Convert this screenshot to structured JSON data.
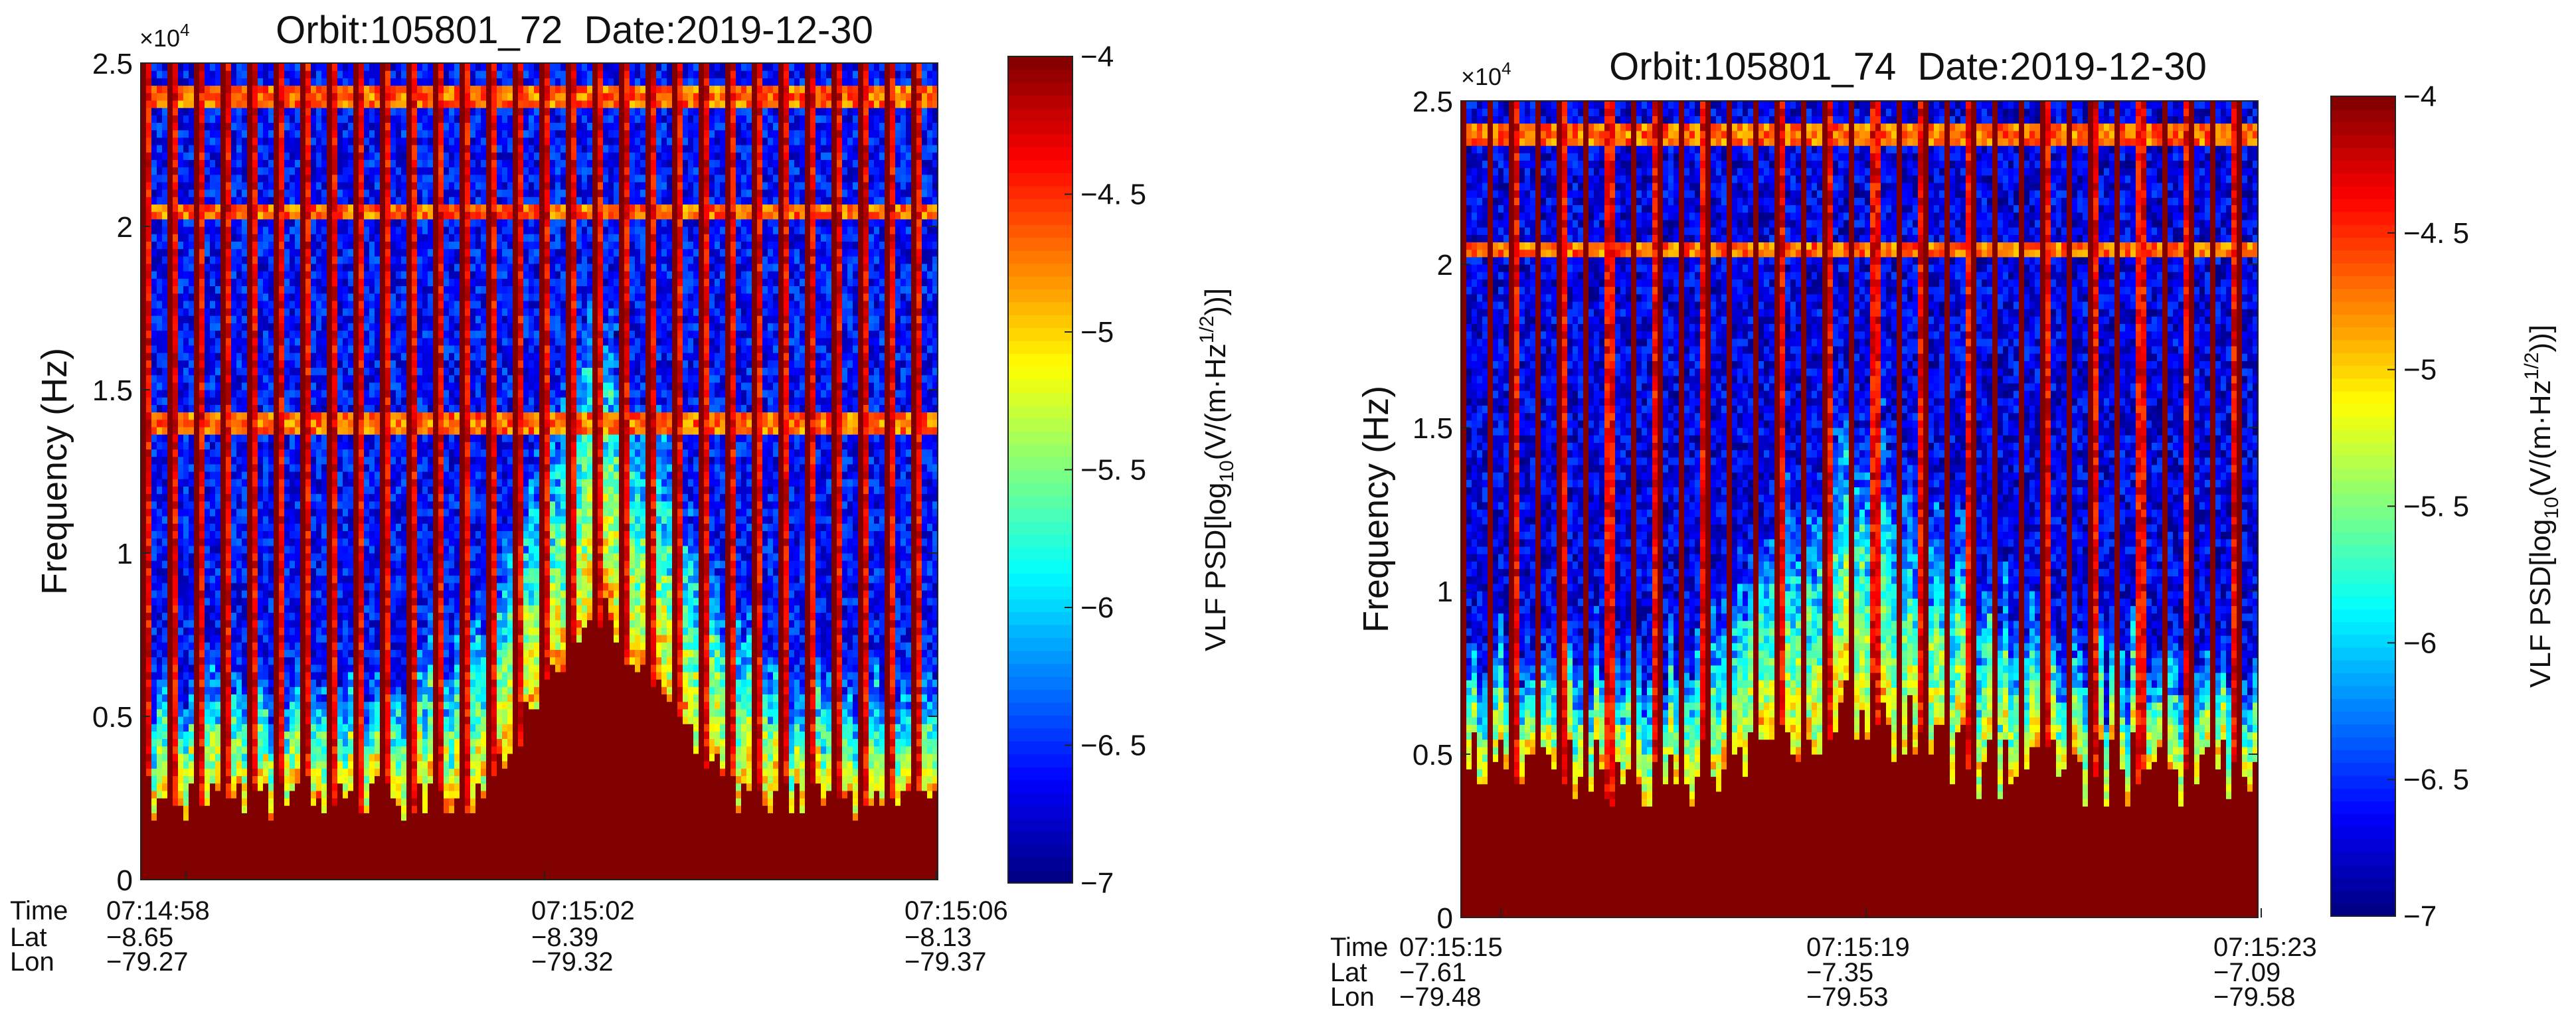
{
  "chart_data": [
    {
      "type": "heatmap",
      "title": "Orbit:105801_72  Date:2019-12-30",
      "orbit": "Orbit:105801_72",
      "date": "Date:2019-12-30",
      "ylabel": "Frequency (Hz)",
      "y_exponent_base": "×10",
      "y_exponent_power": "4",
      "ylim": [
        0,
        25000
      ],
      "yticks": [
        0,
        0.5,
        1,
        1.5,
        2,
        2.5
      ],
      "ytick_labels": [
        "0",
        "0.5",
        "1",
        "1.5",
        "2",
        "2.5"
      ],
      "x_row_labels": [
        "Time",
        "Lat",
        "Lon"
      ],
      "x_ticks": [
        {
          "time": "07:14:58",
          "lat": "−8.65",
          "lon": "−79.27"
        },
        {
          "time": "07:15:02",
          "lat": "−8.39",
          "lon": "−79.32"
        },
        {
          "time": "07:15:06",
          "lat": "−8.13",
          "lon": "−79.37"
        }
      ],
      "colorbar": {
        "label": "VLF PSD[log10(V/(m·Hz1/2))]",
        "label_prefix": "VLF PSD[log",
        "label_sub": "10",
        "label_mid": "(V/(m·Hz",
        "label_sup": "1/2",
        "label_suffix": "))]",
        "range": [
          -7,
          -4
        ],
        "ticks": [
          -4,
          -4.5,
          -5,
          -5.5,
          -6,
          -6.5,
          -7
        ],
        "tick_labels": [
          "−4",
          "−4. 5",
          "−5",
          "−5. 5",
          "−6",
          "−6. 5",
          "−7"
        ],
        "colormap": "jet"
      },
      "features": {
        "horizontal_lines_hz": [
          20500,
          24000,
          14000
        ],
        "vertical_stripe_count": 30,
        "saturated_floor_hz": 2500,
        "emission_peak_time_fraction": 0.58,
        "emission_peak_hz": 13000,
        "background_level": -6.6
      }
    },
    {
      "type": "heatmap",
      "title": "Orbit:105801_74  Date:2019-12-30",
      "orbit": "Orbit:105801_74",
      "date": "Date:2019-12-30",
      "ylabel": "Frequency (Hz)",
      "y_exponent_base": "×10",
      "y_exponent_power": "4",
      "ylim": [
        0,
        25000
      ],
      "yticks": [
        0,
        0.5,
        1,
        1.5,
        2,
        2.5
      ],
      "ytick_labels": [
        "0",
        "0.5",
        "1",
        "1.5",
        "2",
        "2.5"
      ],
      "x_row_labels": [
        "Time",
        "Lat",
        "Lon"
      ],
      "x_ticks": [
        {
          "time": "07:15:15",
          "lat": "−7.61",
          "lon": "−79.48"
        },
        {
          "time": "07:15:19",
          "lat": "−7.35",
          "lon": "−79.53"
        },
        {
          "time": "07:15:23",
          "lat": "−7.09",
          "lon": "−79.58"
        }
      ],
      "colorbar": {
        "label": "VLF PSD[log10(V/(m·Hz1/2))]",
        "label_prefix": "VLF PSD[log",
        "label_sub": "10",
        "label_mid": "(V/(m·Hz",
        "label_sup": "1/2",
        "label_suffix": "))]",
        "range": [
          -7,
          -4
        ],
        "ticks": [
          -4,
          -4.5,
          -5,
          -5.5,
          -6,
          -6.5,
          -7
        ],
        "tick_labels": [
          "−4",
          "−4. 5",
          "−5",
          "−5. 5",
          "−6",
          "−6. 5",
          "−7"
        ],
        "colormap": "jet"
      },
      "features": {
        "horizontal_lines_hz": [
          20500,
          24000
        ],
        "vertical_stripe_count": 33,
        "saturated_floor_hz": 4500,
        "emission_peak_time_fraction": 0.5,
        "emission_peak_hz": 8000,
        "background_level": -6.7
      }
    }
  ]
}
